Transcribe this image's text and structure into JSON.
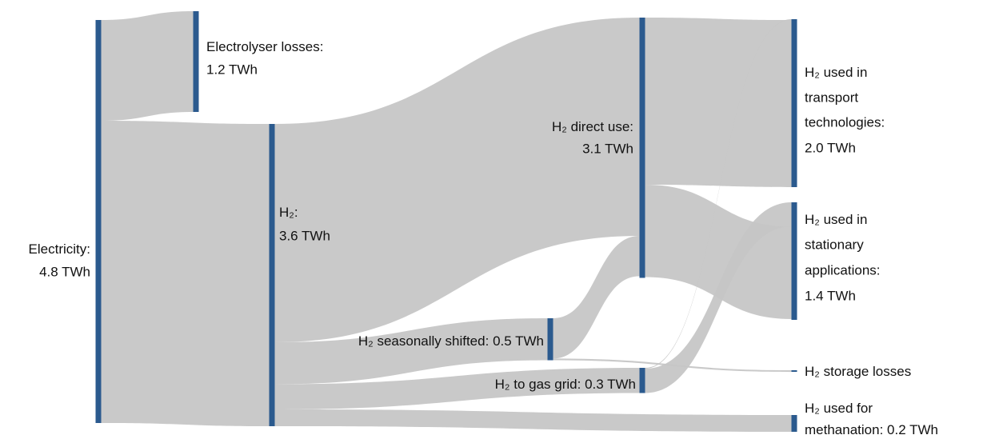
{
  "chart_data": {
    "type": "sankey",
    "node_color": "#2b5a8e",
    "link_color": "#c6c6c6",
    "nodes": [
      {
        "name": [
          "Electricity:"
        ],
        "value": 4.8,
        "value_label": "4.8 TWh"
      },
      {
        "name": [
          "Electrolyser losses:"
        ],
        "value": 1.2,
        "value_label": "1.2 TWh"
      },
      {
        "name": [
          "H₂:"
        ],
        "value": 3.6,
        "value_label": "3.6 TWh"
      },
      {
        "name": [
          "H₂ direct use:"
        ],
        "value": 3.1,
        "value_label": "3.1 TWh"
      },
      {
        "name": [
          "H₂ seasonally shifted:"
        ],
        "value": 0.5,
        "value_label": "0.5 TWh"
      },
      {
        "name": [
          "H₂ to gas grid:"
        ],
        "value": 0.3,
        "value_label": "0.3 TWh"
      },
      {
        "name": [
          "H₂ used in",
          "transport",
          "technologies:"
        ],
        "value": 2.0,
        "value_label": "2.0 TWh"
      },
      {
        "name": [
          "H₂ used in",
          "stationary",
          "applications:"
        ],
        "value": 1.4,
        "value_label": "1.4 TWh"
      },
      {
        "name": [
          "H₂ storage losses"
        ]
      },
      {
        "name": [
          "H₂ used for",
          "methanation:"
        ],
        "value": 0.2,
        "value_label": "0.2 TWh"
      }
    ],
    "links": [
      {
        "source": 0,
        "target": 1,
        "value": 1.2
      },
      {
        "source": 0,
        "target": 2,
        "value": 3.6
      },
      {
        "source": 2,
        "target": 3,
        "value": 2.6
      },
      {
        "source": 2,
        "target": 4,
        "value": 0.5
      },
      {
        "source": 2,
        "target": 5,
        "value": 0.3
      },
      {
        "source": 2,
        "target": 9,
        "value": 0.2
      },
      {
        "source": 4,
        "target": 3,
        "value": 0.48
      },
      {
        "source": 4,
        "target": 8,
        "value": 0.02
      },
      {
        "source": 5,
        "target": 6,
        "value": 0.01
      },
      {
        "source": 5,
        "target": 7,
        "value": 0.29
      },
      {
        "source": 3,
        "target": 6,
        "value": 1.99
      },
      {
        "source": 3,
        "target": 7,
        "value": 1.1
      }
    ]
  }
}
